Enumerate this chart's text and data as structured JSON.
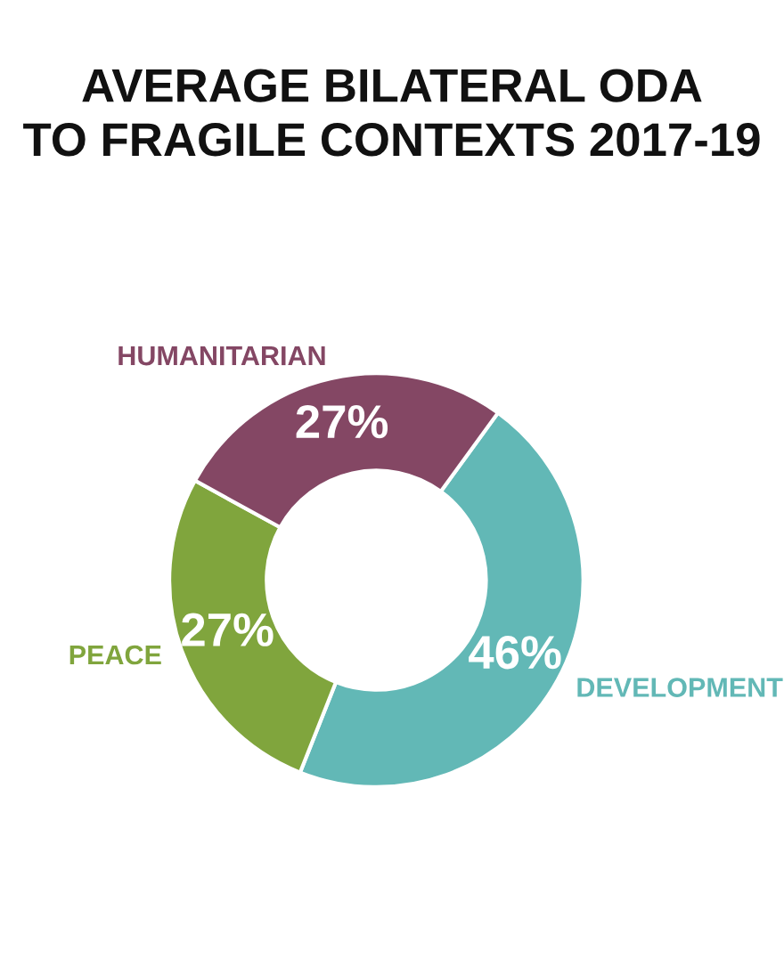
{
  "chart_data": {
    "type": "donut",
    "title": "AVERAGE BILATERAL ODA\nTO FRAGILE CONTEXTS 2017-19",
    "categories": [
      "DEVELOPMENT",
      "PEACE",
      "HUMANITARIAN"
    ],
    "values": [
      46,
      27,
      27
    ],
    "value_labels": [
      "46%",
      "27%",
      "27%"
    ],
    "colors": [
      "#62b8b6",
      "#80a53d",
      "#844764"
    ]
  }
}
